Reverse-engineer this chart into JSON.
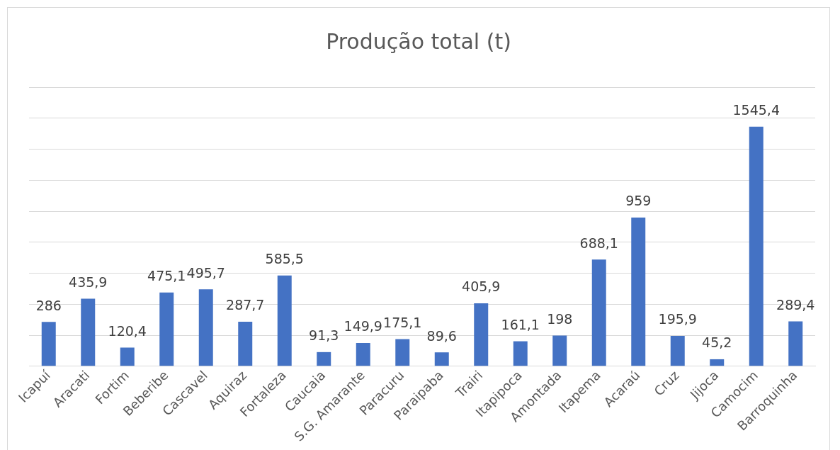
{
  "chart_data": {
    "type": "bar",
    "title": "Produção total (t)",
    "categories": [
      "Icapuí",
      "Aracati",
      "Fortim",
      "Beberibe",
      "Cascavel",
      "Aquiraz",
      "Fortaleza",
      "Caucaia",
      "S.G. Amarante",
      "Paracuru",
      "Paraipaba",
      "Trairi",
      "Itapipoca",
      "Amontada",
      "Itapema",
      "Acaraú",
      "Cruz",
      "Jijoca",
      "Camocim",
      "Barroquinha"
    ],
    "values": [
      286,
      435.9,
      120.4,
      475.1,
      495.7,
      287.7,
      585.5,
      91.3,
      149.9,
      175.1,
      89.6,
      405.9,
      161.1,
      198,
      688.1,
      959,
      195.9,
      45.2,
      1545.4,
      289.4
    ],
    "value_labels": [
      "286",
      "435,9",
      "120,4",
      "475,1",
      "495,7",
      "287,7",
      "585,5",
      "91,3",
      "149,9",
      "175,1",
      "89,6",
      "405,9",
      "161,1",
      "198",
      "688,1",
      "959",
      "195,9",
      "45,2",
      "1545,4",
      "289,4"
    ],
    "color": "#4472c4",
    "ylim": [
      0,
      1800
    ],
    "grid": "y",
    "tick_labels": "x",
    "legend": false
  }
}
